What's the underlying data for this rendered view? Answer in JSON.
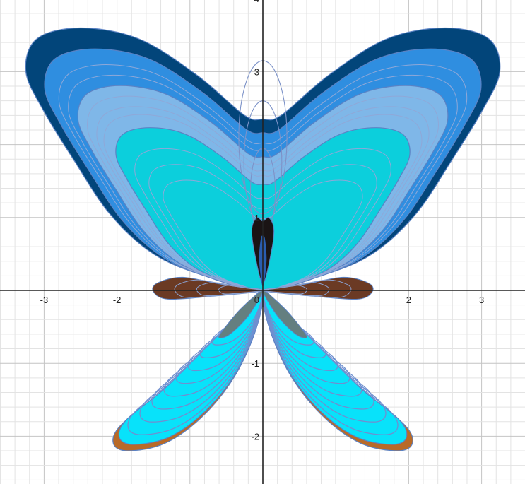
{
  "chart_data": {
    "type": "line",
    "title": "",
    "xlabel": "",
    "ylabel": "",
    "xlim": [
      -3.6,
      3.6
    ],
    "ylim": [
      -2.65,
      4.0
    ],
    "grid": true,
    "minor_grid_step": 0.2,
    "major_grid_step": 1,
    "x_ticks": [
      {
        "value": -3,
        "label": "-3"
      },
      {
        "value": -2,
        "label": "-2"
      },
      {
        "value": 2,
        "label": "2"
      },
      {
        "value": 3,
        "label": "3"
      }
    ],
    "y_ticks": [
      {
        "value": -2,
        "label": "-2"
      },
      {
        "value": -1,
        "label": "-1"
      },
      {
        "value": 1,
        "label": "1"
      },
      {
        "value": 3,
        "label": "3"
      },
      {
        "value": 4,
        "label": "4"
      }
    ],
    "origin_label": "0",
    "outline_color": "#5b82c4",
    "wings": {
      "upper_layers": [
        {
          "scale": 1.0,
          "color": "#02457a"
        },
        {
          "scale": 0.92,
          "color": "#2f8ee0"
        },
        {
          "scale": 0.78,
          "color": "#7fb7e8"
        },
        {
          "scale": 0.62,
          "color": "#0ccfdc"
        }
      ],
      "upper_contours": [
        0.86,
        0.82,
        0.74,
        0.7,
        0.67,
        0.54,
        0.48,
        0.42
      ],
      "lower_layers": [
        {
          "scale": 1.0,
          "color": "#b86a28"
        },
        {
          "scale": 0.96,
          "color": "#08e2fa"
        }
      ],
      "lower_contours": [
        0.9,
        0.82,
        0.74,
        0.66,
        0.58,
        0.5,
        0.42,
        0.34
      ],
      "lower_inner_color": "#647f80",
      "side_lobe_color": "#6b3a24",
      "body_dark_color": "#1a1414",
      "body_mid_color": "#2a5db0"
    }
  }
}
